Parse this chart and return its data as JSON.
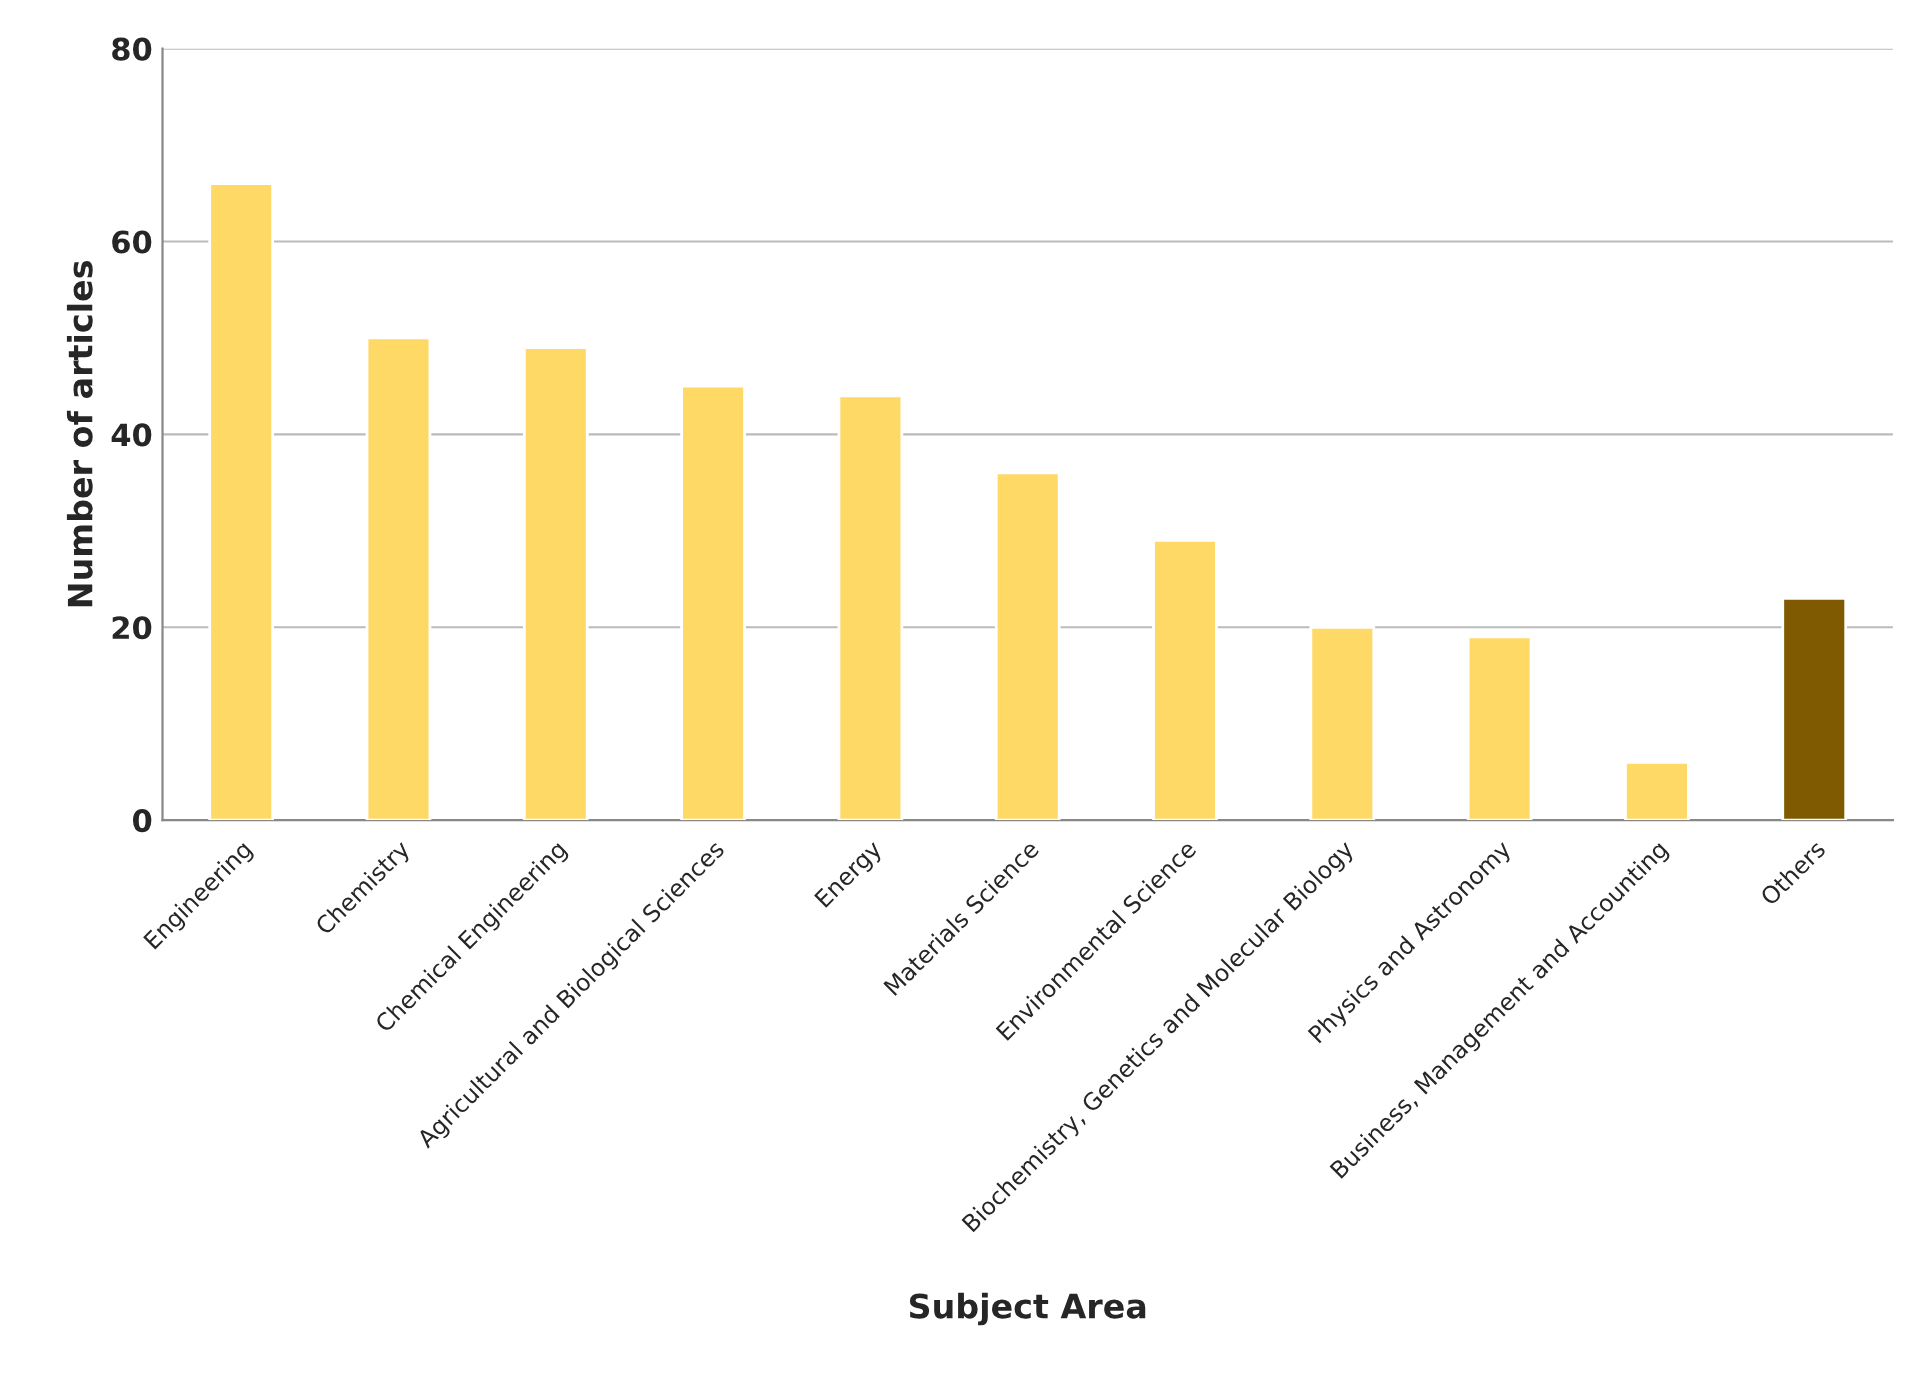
{
  "chart_data": {
    "type": "bar",
    "xlabel": "Subject Area",
    "ylabel": "Number of articles",
    "categories": [
      "Engineering",
      "Chemistry",
      "Chemical Engineering",
      "Agricultural and Biological Sciences",
      "Energy",
      "Materials Science",
      "Environmental Science",
      "Biochemistry, Genetics and Molecular Biology",
      "Physics and Astronomy",
      "Business, Management and Accounting",
      "Others"
    ],
    "values": [
      66,
      50,
      49,
      45,
      44,
      36,
      29,
      20,
      19,
      6,
      23
    ],
    "colors": [
      "#ffd966",
      "#ffd966",
      "#ffd966",
      "#ffd966",
      "#ffd966",
      "#ffd966",
      "#ffd966",
      "#ffd966",
      "#ffd966",
      "#ffd966",
      "#7f5a00"
    ],
    "ylim": [
      0,
      80
    ],
    "yticks": [
      0,
      20,
      40,
      60,
      80
    ],
    "grid": "y"
  }
}
